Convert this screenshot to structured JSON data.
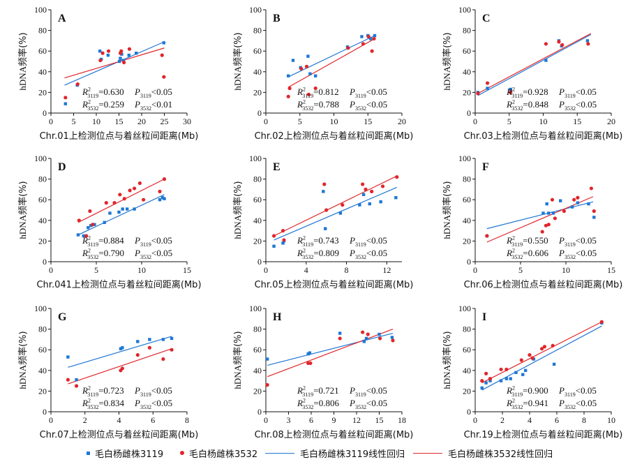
{
  "colors": {
    "s3119": "#1f77d4",
    "s3532": "#e0262b",
    "axis": "#111111"
  },
  "ylabel_prefix": "hDNA",
  "ylabel_suffix": "频率(%)",
  "legend": [
    {
      "label": "毛白杨雌株3119",
      "kind": "square",
      "series": "s3119"
    },
    {
      "label": "毛白杨雌株3532",
      "kind": "dot",
      "series": "s3532"
    },
    {
      "label": "毛白杨雌株3119线性回归",
      "kind": "line",
      "series": "s3119"
    },
    {
      "label": "毛白杨雌株3532线性回归",
      "kind": "line",
      "series": "s3532"
    }
  ],
  "chart_data": [
    {
      "panel": "A",
      "type": "scatter",
      "xlabel": "Chr.01上检测位点与着丝粒间距离(Mb)",
      "xlim": [
        0,
        30
      ],
      "xticks": [
        0,
        5,
        10,
        15,
        20,
        25,
        30
      ],
      "ylim": [
        0,
        100
      ],
      "yticks": [
        0,
        20,
        40,
        60,
        80,
        100
      ],
      "stats": [
        [
          "0.630",
          "<0.05"
        ],
        [
          "0.259",
          "<0.01"
        ]
      ],
      "s3119": {
        "x": [
          3.2,
          5.8,
          10.8,
          11.1,
          12.6,
          15.1,
          15.3,
          15.6,
          16.0,
          17.2,
          18.8,
          24.9
        ],
        "y": [
          9,
          27,
          60,
          52,
          56,
          50,
          53,
          57,
          51,
          56,
          58,
          68
        ]
      },
      "s3532": {
        "x": [
          3.2,
          5.9,
          10.9,
          11.4,
          12.7,
          15.3,
          15.5,
          16.1,
          17.3,
          24.5,
          24.9
        ],
        "y": [
          15,
          28,
          51,
          58,
          60,
          58,
          60,
          49,
          62,
          56,
          35
        ]
      },
      "fit3119": [
        3,
        27,
        25,
        69
      ],
      "fit3532": [
        3,
        34,
        25,
        63
      ]
    },
    {
      "panel": "B",
      "type": "scatter",
      "xlabel": "Chr.02上检测位点与着丝粒间距离(Mb)",
      "xlim": [
        0,
        20
      ],
      "xticks": [
        0,
        5,
        10,
        15,
        20
      ],
      "ylim": [
        0,
        100
      ],
      "yticks": [
        0,
        20,
        40,
        60,
        80,
        100
      ],
      "stats": [
        [
          "0.812",
          "<0.05"
        ],
        [
          "0.788",
          "<0.05"
        ]
      ],
      "s3119": {
        "x": [
          3.3,
          4.0,
          5.1,
          6.2,
          6.5,
          7.3,
          12.0,
          14.1,
          15.0,
          15.4,
          16.0
        ],
        "y": [
          36,
          51,
          44,
          55,
          38,
          36,
          64,
          74,
          75,
          72,
          75
        ]
      },
      "s3532": {
        "x": [
          3.3,
          3.5,
          5.2,
          6.0,
          6.3,
          7.3,
          12.1,
          14.3,
          15.1,
          15.6,
          15.9
        ],
        "y": [
          16,
          24,
          43,
          45,
          18,
          24,
          63,
          67,
          74,
          60,
          72
        ]
      },
      "fit3119": [
        3.3,
        35,
        16,
        75
      ],
      "fit3532": [
        3.3,
        25,
        16,
        72
      ]
    },
    {
      "panel": "C",
      "type": "scatter",
      "xlabel": "Chr.03上检测位点与着丝粒间距离(Mb)",
      "xlim": [
        0,
        20
      ],
      "xticks": [
        0,
        5,
        10,
        15,
        20
      ],
      "ylim": [
        0,
        100
      ],
      "yticks": [
        0,
        20,
        40,
        60,
        80,
        100
      ],
      "stats": [
        [
          "0.928",
          "<0.05"
        ],
        [
          "0.848",
          "<0.05"
        ]
      ],
      "s3119": {
        "x": [
          0.4,
          1.8,
          5.2,
          10.4,
          12.3,
          12.7,
          16.5
        ],
        "y": [
          20,
          24,
          23,
          51,
          70,
          65,
          70
        ]
      },
      "s3532": {
        "x": [
          0.4,
          1.8,
          5.2,
          10.4,
          12.3,
          12.8,
          16.6
        ],
        "y": [
          19,
          29,
          20,
          67,
          69,
          66,
          67
        ]
      },
      "fit3119": [
        0.4,
        17,
        17,
        76
      ],
      "fit3532": [
        0.4,
        19,
        17,
        77
      ]
    },
    {
      "panel": "D",
      "type": "scatter",
      "xlabel": "Chr.041上检测位点与着丝粒间距离(Mb)",
      "xlim": [
        0,
        15
      ],
      "xticks": [
        0,
        5,
        10,
        15
      ],
      "ylim": [
        0,
        100
      ],
      "yticks": [
        0,
        20,
        40,
        60,
        80,
        100
      ],
      "stats": [
        [
          "0.884",
          "<0.05"
        ],
        [
          "0.790",
          "<0.05"
        ]
      ],
      "s3119": {
        "x": [
          3.0,
          3.6,
          4.1,
          4.4,
          4.8,
          5.9,
          6.5,
          7.5,
          7.9,
          8.4,
          9.2,
          12.0,
          12.3,
          12.5
        ],
        "y": [
          26,
          25,
          33,
          35,
          36,
          38,
          47,
          48,
          51,
          51,
          51,
          60,
          62,
          61
        ]
      },
      "s3532": {
        "x": [
          3.1,
          3.9,
          4.3,
          4.6,
          6.1,
          7.0,
          7.6,
          8.1,
          8.7,
          9.2,
          9.8,
          10.2,
          12.0,
          12.5
        ],
        "y": [
          40,
          25,
          49,
          36,
          57,
          57,
          65,
          61,
          69,
          71,
          76,
          60,
          68,
          80
        ]
      },
      "fit3119": [
        3,
        26,
        12.5,
        65
      ],
      "fit3532": [
        3,
        38,
        12.5,
        80
      ]
    },
    {
      "panel": "E",
      "type": "scatter",
      "xlabel": "Chr.05上检测位点与着丝粒间距离(Mb)",
      "xlim": [
        0,
        13.5
      ],
      "xticks": [
        0,
        4,
        8,
        12
      ],
      "ylim": [
        0,
        100
      ],
      "yticks": [
        0,
        20,
        40,
        60,
        80,
        100
      ],
      "stats": [
        [
          "0.743",
          "<0.05"
        ],
        [
          "0.809",
          "<0.05"
        ]
      ],
      "s3119": {
        "x": [
          0.8,
          1.7,
          1.8,
          5.7,
          5.9,
          7.4,
          9.3,
          9.7,
          10.3,
          11.4,
          12.9
        ],
        "y": [
          15,
          18,
          20,
          68,
          32,
          47,
          55,
          65,
          56,
          58,
          62
        ]
      },
      "s3532": {
        "x": [
          0.8,
          1.7,
          1.8,
          5.8,
          6.0,
          7.6,
          9.6,
          9.9,
          10.5,
          11.6,
          13.0
        ],
        "y": [
          25,
          30,
          21,
          75,
          50,
          55,
          75,
          70,
          68,
          73,
          82
        ]
      },
      "fit3119": [
        0.8,
        21,
        13,
        72
      ],
      "fit3532": [
        0.8,
        25,
        13,
        83
      ]
    },
    {
      "panel": "F",
      "type": "scatter",
      "xlabel": "Chr.06上检测位点与着丝粒间距离(Mb)",
      "xlim": [
        0,
        15
      ],
      "xticks": [
        0,
        5,
        10,
        15
      ],
      "ylim": [
        0,
        100
      ],
      "yticks": [
        0,
        20,
        40,
        60,
        80,
        100
      ],
      "stats": [
        [
          "0.550",
          "<0.05"
        ],
        [
          "0.606",
          "<0.05"
        ]
      ],
      "s3119": {
        "x": [
          1.3,
          7.5,
          7.9,
          8.1,
          8.6,
          9.4,
          10.7,
          11.3,
          12.5,
          13.1
        ],
        "y": [
          25,
          47,
          56,
          47,
          47,
          59,
          53,
          57,
          56,
          43
        ]
      },
      "s3532": {
        "x": [
          1.3,
          7.4,
          7.8,
          8.1,
          8.5,
          8.8,
          9.8,
          10.9,
          11.3,
          12.8,
          13.1
        ],
        "y": [
          25,
          29,
          35,
          36,
          60,
          42,
          49,
          60,
          62,
          71,
          49
        ]
      },
      "fit3119": [
        1.3,
        32,
        13,
        58
      ],
      "fit3532": [
        1.3,
        19,
        13,
        63
      ]
    },
    {
      "panel": "G",
      "type": "scatter",
      "xlabel": "Chr.07上检测位点与着丝粒间距离(Mb)",
      "xlim": [
        0,
        8
      ],
      "xticks": [
        0,
        2,
        4,
        6,
        8
      ],
      "ylim": [
        0,
        100
      ],
      "yticks": [
        0,
        20,
        40,
        60,
        80,
        100
      ],
      "stats": [
        [
          "0.723",
          "<0.05"
        ],
        [
          "0.834",
          "<0.05"
        ]
      ],
      "s3119": {
        "x": [
          1.0,
          1.5,
          4.1,
          4.2,
          5.1,
          5.8,
          6.6,
          7.1
        ],
        "y": [
          53,
          31,
          61,
          62,
          68,
          70,
          70,
          71
        ]
      },
      "s3532": {
        "x": [
          1.0,
          1.5,
          4.1,
          4.2,
          5.1,
          5.8,
          6.6,
          7.1
        ],
        "y": [
          31,
          25,
          40,
          42,
          55,
          62,
          51,
          60
        ]
      },
      "fit3119": [
        1,
        43,
        7.1,
        73
      ],
      "fit3532": [
        1,
        27,
        7.1,
        61
      ]
    },
    {
      "panel": "H",
      "type": "scatter",
      "xlabel": "Chr.08上检测位点与着丝粒间距离(Mb)",
      "xlim": [
        0,
        18
      ],
      "xticks": [
        0,
        3,
        6,
        9,
        12,
        15,
        18
      ],
      "ylim": [
        0,
        100
      ],
      "yticks": [
        0,
        20,
        40,
        60,
        80,
        100
      ],
      "stats": [
        [
          "0.721",
          "<0.05"
        ],
        [
          "0.806",
          "<0.05"
        ]
      ],
      "s3119": {
        "x": [
          0.2,
          5.6,
          5.8,
          9.8,
          13.0,
          13.3,
          15.0,
          16.7
        ],
        "y": [
          51,
          56,
          57,
          76,
          68,
          71,
          75,
          72
        ]
      },
      "s3532": {
        "x": [
          0.2,
          5.6,
          5.9,
          9.8,
          12.8,
          13.5,
          15.1,
          16.8
        ],
        "y": [
          26,
          47,
          47,
          71,
          77,
          75,
          71,
          69
        ]
      },
      "fit3119": [
        0.2,
        45,
        16.8,
        76
      ],
      "fit3532": [
        0.2,
        34,
        16.8,
        80
      ]
    },
    {
      "panel": "I",
      "type": "scatter",
      "xlabel": "Chr.19上检测位点与着丝粒间距离(Mb)",
      "xlim": [
        0,
        10
      ],
      "xticks": [
        0,
        2,
        4,
        6,
        8,
        10
      ],
      "ylim": [
        0,
        100
      ],
      "yticks": [
        0,
        20,
        40,
        60,
        80,
        100
      ],
      "stats": [
        [
          "0.900",
          "<0.05"
        ],
        [
          "0.941",
          "<0.05"
        ]
      ],
      "s3119": {
        "x": [
          0.5,
          0.8,
          1.1,
          1.9,
          2.3,
          2.6,
          3.0,
          3.5,
          3.7,
          4.3,
          5.8,
          9.3
        ],
        "y": [
          23,
          28,
          30,
          30,
          32,
          32,
          38,
          36,
          40,
          51,
          46,
          86
        ]
      },
      "s3532": {
        "x": [
          0.5,
          0.8,
          1.1,
          1.9,
          2.3,
          3.4,
          4.0,
          4.2,
          4.9,
          5.1,
          5.7,
          9.3
        ],
        "y": [
          30,
          37,
          32,
          41,
          41,
          50,
          55,
          52,
          61,
          63,
          64,
          87
        ]
      },
      "fit3119": [
        0.5,
        21,
        9.3,
        83
      ],
      "fit3532": [
        0.5,
        28,
        9.3,
        87
      ]
    }
  ]
}
